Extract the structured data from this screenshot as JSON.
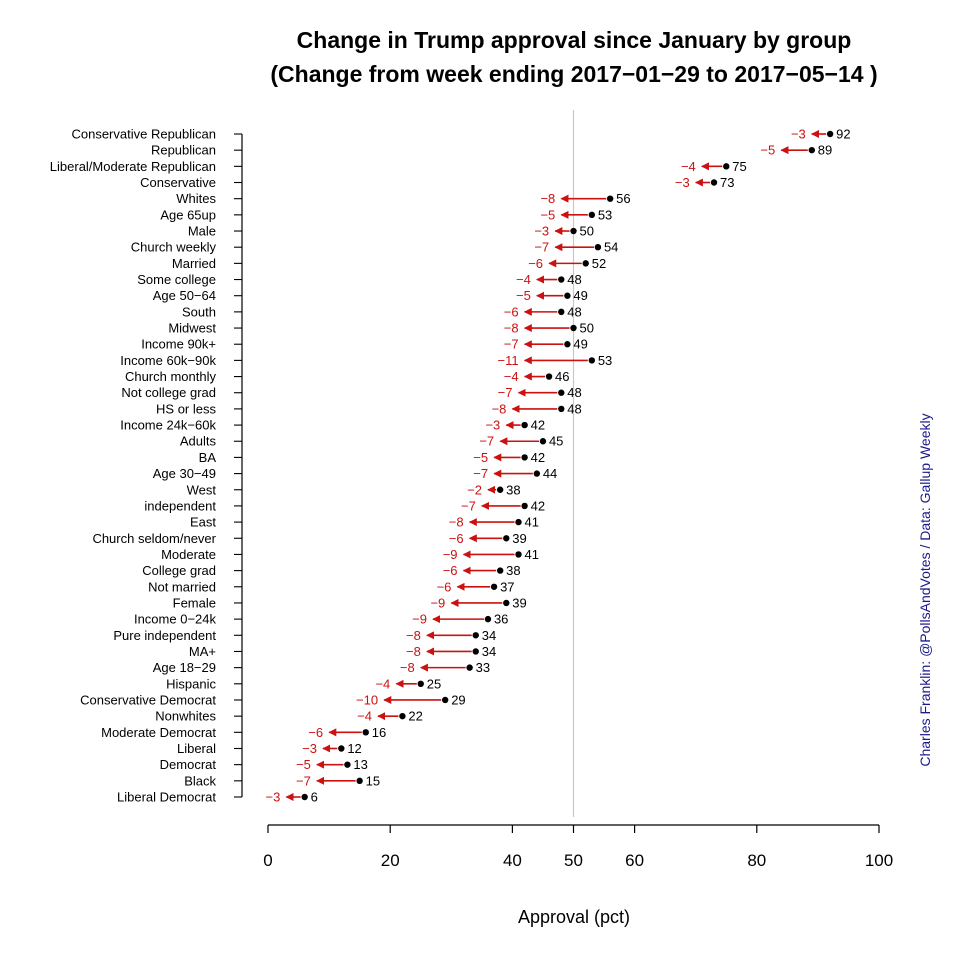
{
  "chart_data": {
    "type": "dot-arrow",
    "title": "Change in Trump approval since January by group",
    "subtitle": "(Change from week ending 2017−01−29 to 2017−05−14 )",
    "xlabel": "Approval (pct)",
    "xlim": [
      0,
      100
    ],
    "x_ticks": [
      0,
      20,
      40,
      50,
      60,
      80,
      100
    ],
    "reference_line": 50,
    "credit": "Charles Franklin: @PollsAndVotes / Data: Gallup Weekly",
    "colors": {
      "arrow": "#cc1111",
      "point": "#000000",
      "reference_line": "#c8c8c8"
    },
    "groups": [
      {
        "label": "Conservative Republican",
        "current": 92,
        "change": -3
      },
      {
        "label": "Republican",
        "current": 89,
        "change": -5
      },
      {
        "label": "Liberal/Moderate Republican",
        "current": 75,
        "change": -4
      },
      {
        "label": "Conservative",
        "current": 73,
        "change": -3
      },
      {
        "label": "Whites",
        "current": 56,
        "change": -8
      },
      {
        "label": "Age 65up",
        "current": 53,
        "change": -5
      },
      {
        "label": "Male",
        "current": 50,
        "change": -3
      },
      {
        "label": "Church weekly",
        "current": 54,
        "change": -7
      },
      {
        "label": "Married",
        "current": 52,
        "change": -6
      },
      {
        "label": "Some college",
        "current": 48,
        "change": -4
      },
      {
        "label": "Age 50−64",
        "current": 49,
        "change": -5
      },
      {
        "label": "South",
        "current": 48,
        "change": -6
      },
      {
        "label": "Midwest",
        "current": 50,
        "change": -8
      },
      {
        "label": "Income 90k+",
        "current": 49,
        "change": -7
      },
      {
        "label": "Income 60k−90k",
        "current": 53,
        "change": -11
      },
      {
        "label": "Church monthly",
        "current": 46,
        "change": -4
      },
      {
        "label": "Not college grad",
        "current": 48,
        "change": -7
      },
      {
        "label": "HS or less",
        "current": 48,
        "change": -8
      },
      {
        "label": "Income 24k−60k",
        "current": 42,
        "change": -3
      },
      {
        "label": "Adults",
        "current": 45,
        "change": -7
      },
      {
        "label": "BA",
        "current": 42,
        "change": -5
      },
      {
        "label": "Age 30−49",
        "current": 44,
        "change": -7
      },
      {
        "label": "West",
        "current": 38,
        "change": -2
      },
      {
        "label": "independent",
        "current": 42,
        "change": -7
      },
      {
        "label": "East",
        "current": 41,
        "change": -8
      },
      {
        "label": "Church seldom/never",
        "current": 39,
        "change": -6
      },
      {
        "label": "Moderate",
        "current": 41,
        "change": -9
      },
      {
        "label": "College grad",
        "current": 38,
        "change": -6
      },
      {
        "label": "Not married",
        "current": 37,
        "change": -6
      },
      {
        "label": "Female",
        "current": 39,
        "change": -9
      },
      {
        "label": "Income 0−24k",
        "current": 36,
        "change": -9
      },
      {
        "label": "Pure independent",
        "current": 34,
        "change": -8
      },
      {
        "label": "MA+",
        "current": 34,
        "change": -8
      },
      {
        "label": "Age 18−29",
        "current": 33,
        "change": -8
      },
      {
        "label": "Hispanic",
        "current": 25,
        "change": -4
      },
      {
        "label": "Conservative Democrat",
        "current": 29,
        "change": -10
      },
      {
        "label": "Nonwhites",
        "current": 22,
        "change": -4
      },
      {
        "label": "Moderate Democrat",
        "current": 16,
        "change": -6
      },
      {
        "label": "Liberal",
        "current": 12,
        "change": -3
      },
      {
        "label": "Democrat",
        "current": 13,
        "change": -5
      },
      {
        "label": "Black",
        "current": 15,
        "change": -7
      },
      {
        "label": "Liberal Democrat",
        "current": 6,
        "change": -3
      }
    ]
  }
}
